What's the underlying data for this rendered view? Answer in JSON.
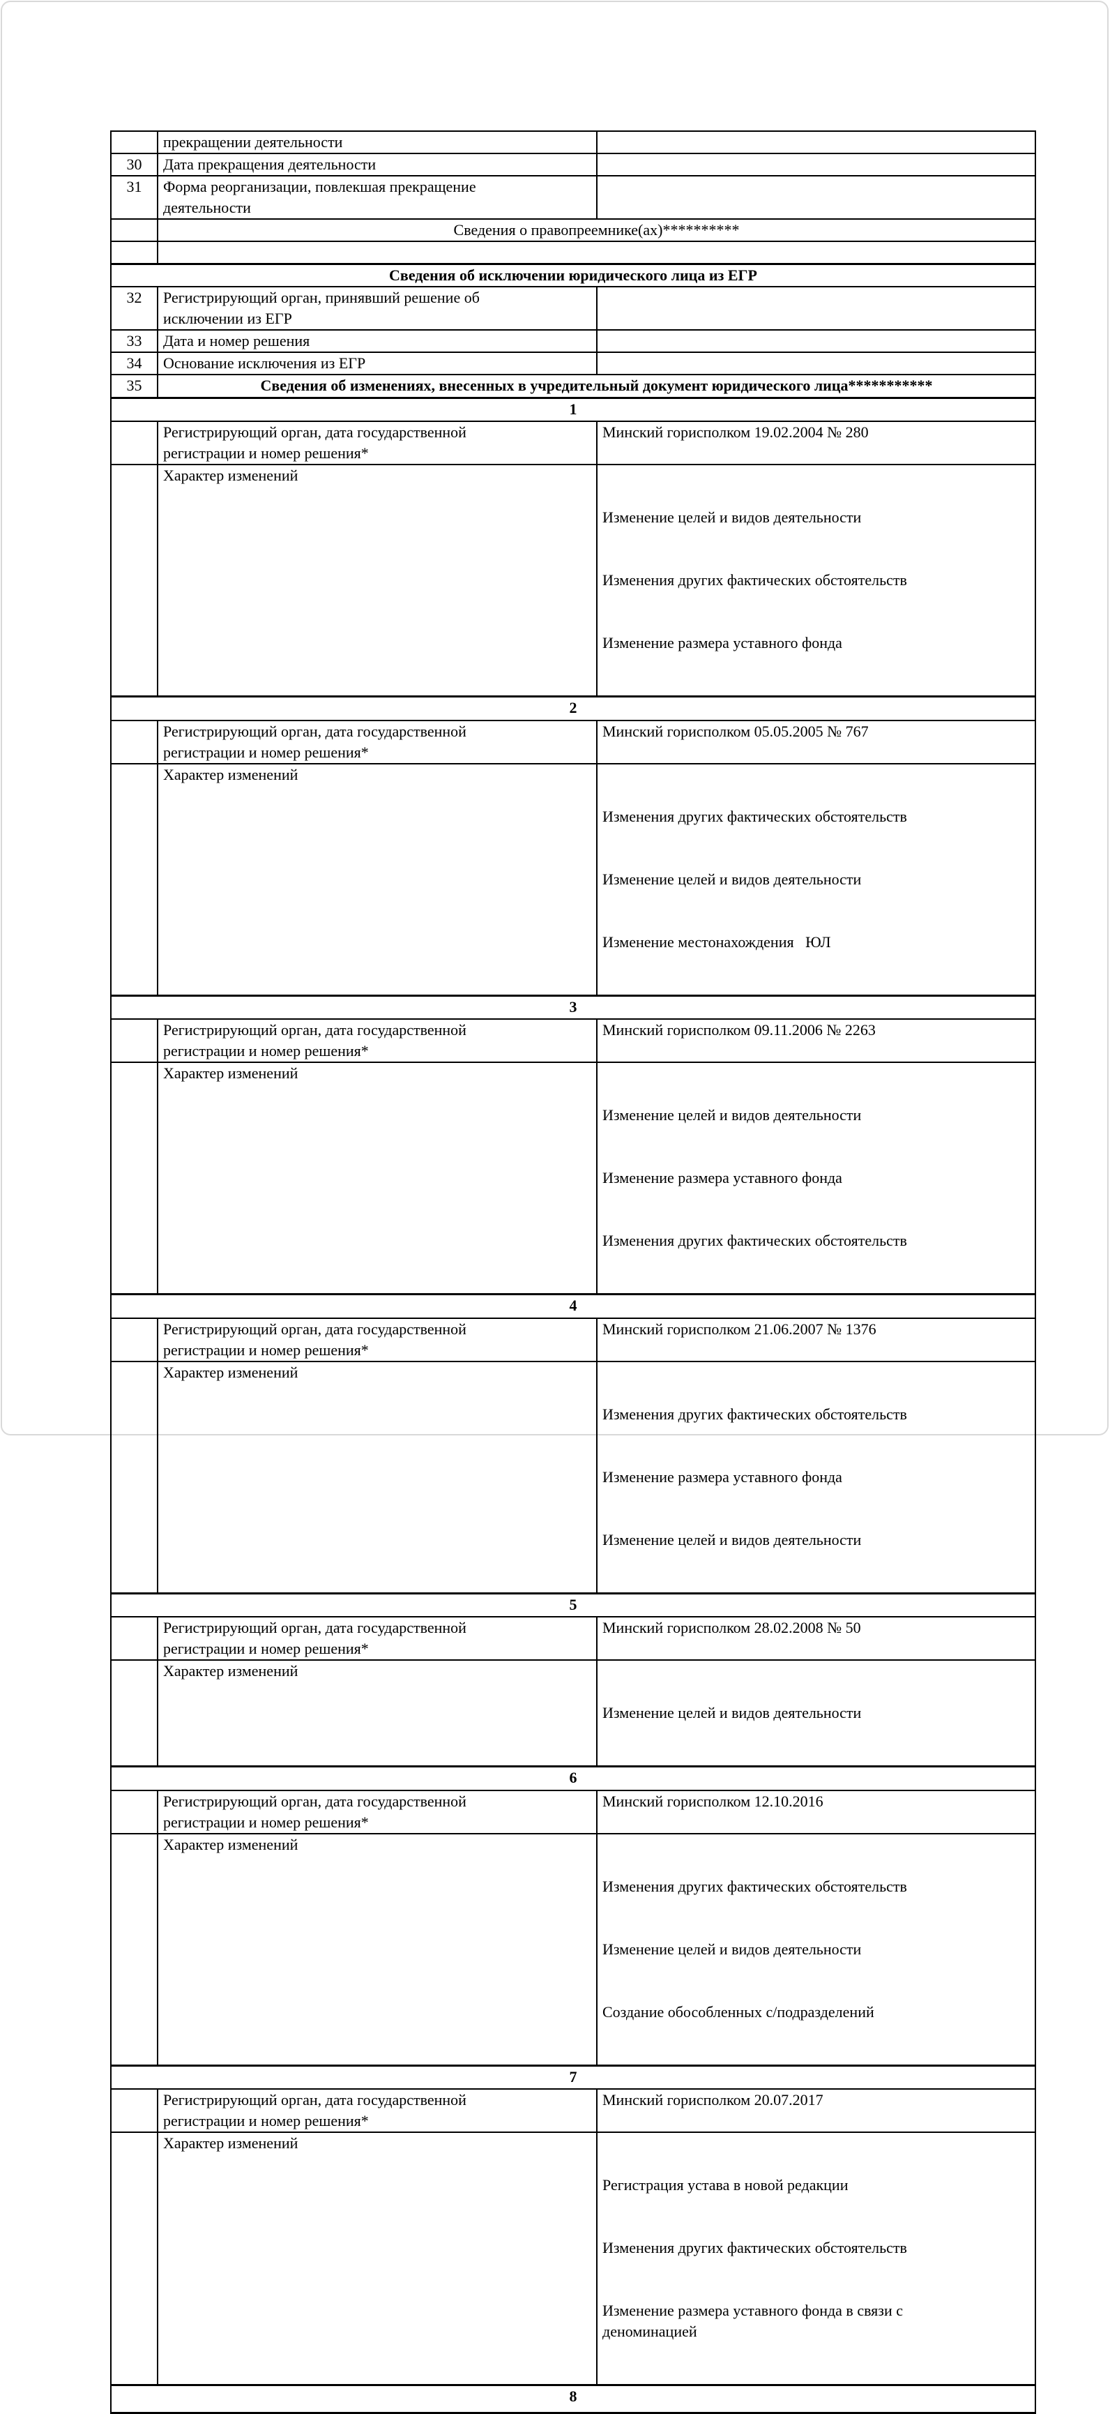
{
  "table": {
    "continuation_row": {
      "label": "прекращении деятельности"
    },
    "row30": {
      "num": "30",
      "label": "Дата прекращения деятельности"
    },
    "row31": {
      "num": "31",
      "label": "Форма реорганизации, повлекшая прекращение\nдеятельности"
    },
    "successor_header": "Сведения о правопреемнике(ах)**********",
    "exclusion_header": "Сведения об исключении юридического лица из ЕГР",
    "row32": {
      "num": "32",
      "label": "Регистрирующий орган, принявший решение об\nисключении из ЕГР"
    },
    "row33": {
      "num": "33",
      "label": "Дата и номер решения"
    },
    "row34": {
      "num": "34",
      "label": "Основание исключения из ЕГР"
    },
    "amendments_row": {
      "num": "35",
      "label": "Сведения об изменениях, внесенных в учредительный документ юридического лица***********"
    },
    "labels": {
      "registering_authority": "Регистрирующий орган, дата государственной\nрегистрации и номер решения*",
      "nature_of_changes": "Характер изменений"
    },
    "amendments": [
      {
        "num": "1",
        "decision": "Минский горисполком 19.02.2004 № 280",
        "changes": [
          "Изменение целей и видов деятельности",
          "Изменения других фактических обстоятельств",
          "Изменение размера уставного фонда"
        ]
      },
      {
        "num": "2",
        "decision": "Минский горисполком 05.05.2005 № 767",
        "changes": [
          "Изменения других фактических обстоятельств",
          "Изменение целей и видов деятельности",
          "Изменение местонахождения   ЮЛ"
        ]
      },
      {
        "num": "3",
        "decision": "Минский горисполком 09.11.2006 № 2263",
        "changes": [
          "Изменение целей и видов деятельности",
          "Изменение размера уставного фонда",
          "Изменения других фактических обстоятельств"
        ]
      },
      {
        "num": "4",
        "decision": "Минский горисполком 21.06.2007 № 1376",
        "changes": [
          "Изменения других фактических обстоятельств",
          "Изменение размера уставного фонда",
          "Изменение целей и видов деятельности"
        ]
      },
      {
        "num": "5",
        "decision": "Минский горисполком 28.02.2008 № 50",
        "changes": [
          "Изменение целей и видов деятельности"
        ]
      },
      {
        "num": "6",
        "decision": "Минский горисполком 12.10.2016",
        "changes": [
          "Изменения других фактических обстоятельств",
          "Изменение целей и видов деятельности",
          "Создание обособленных с/подразделений"
        ]
      },
      {
        "num": "7",
        "decision": "Минский горисполком 20.07.2017",
        "changes": [
          "Регистрация устава в новой редакции",
          "Изменения других фактических обстоятельств",
          "Изменение размера уставного фонда в связи с\nденоминацией"
        ]
      },
      {
        "num": "8"
      }
    ]
  }
}
